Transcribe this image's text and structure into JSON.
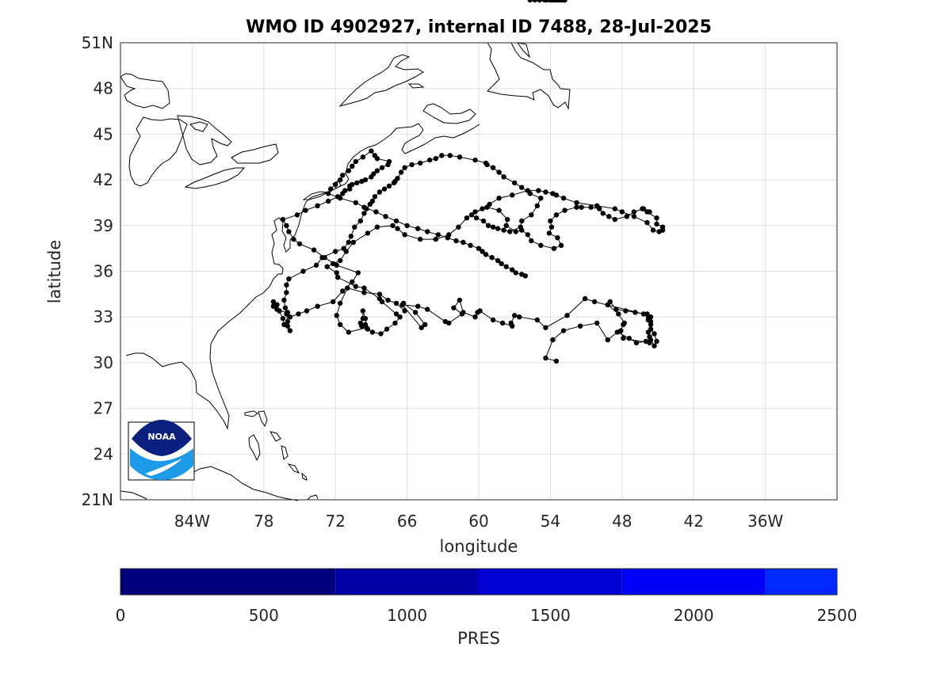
{
  "title": "WMO ID 4902927, internal ID 7488, 28-Jul-2025",
  "map": {
    "xlabel": "longitude",
    "ylabel": "latitude",
    "lon_range": [
      -90,
      -30
    ],
    "lat_range": [
      21,
      51
    ],
    "lon_ticks": [
      {
        "lon": -84,
        "label": "84W"
      },
      {
        "lon": -78,
        "label": "78"
      },
      {
        "lon": -72,
        "label": "72"
      },
      {
        "lon": -66,
        "label": "66"
      },
      {
        "lon": -60,
        "label": "60"
      },
      {
        "lon": -54,
        "label": "54"
      },
      {
        "lon": -48,
        "label": "48"
      },
      {
        "lon": -42,
        "label": "42"
      },
      {
        "lon": -36,
        "label": "36W"
      }
    ],
    "lat_ticks": [
      {
        "lat": 21,
        "label": "21N"
      },
      {
        "lat": 24,
        "label": "24"
      },
      {
        "lat": 27,
        "label": "27"
      },
      {
        "lat": 30,
        "label": "30"
      },
      {
        "lat": 33,
        "label": "33"
      },
      {
        "lat": 36,
        "label": "36"
      },
      {
        "lat": 39,
        "label": "39"
      },
      {
        "lat": 42,
        "label": "42"
      },
      {
        "lat": 45,
        "label": "45"
      },
      {
        "lat": 48,
        "label": "48"
      },
      {
        "lat": 51,
        "label": "51N"
      }
    ],
    "grid": true,
    "logo_text": "NOAA"
  },
  "colorbar": {
    "label": "PRES",
    "ticks": [
      0,
      500,
      1000,
      1500,
      2000,
      2500
    ],
    "range": [
      0,
      2500
    ],
    "bands": [
      {
        "from": 0,
        "to": 750,
        "color": "#00007f"
      },
      {
        "from": 750,
        "to": 1250,
        "color": "#0000a8"
      },
      {
        "from": 1250,
        "to": 1750,
        "color": "#0000d3"
      },
      {
        "from": 1750,
        "to": 2250,
        "color": "#0000f8"
      },
      {
        "from": 2250,
        "to": 2500,
        "color": "#0028ff"
      }
    ]
  },
  "chart_data": {
    "type": "scatter",
    "title": "WMO ID 4902927, internal ID 7488, 28-Jul-2025",
    "xlabel": "longitude",
    "ylabel": "latitude",
    "xlim": [
      -90,
      -30
    ],
    "ylim": [
      21,
      51
    ],
    "grid": true,
    "series": [
      {
        "lon": [
          -53.5,
          -54.4,
          -53.8,
          -52.9,
          -51.5,
          -50.1,
          -49.2,
          -48.4,
          -47.4,
          -46.8,
          -46.0,
          -45.6,
          -45.3,
          -45.1,
          -45.3,
          -45.6,
          -45.7,
          -45.6,
          -45.9,
          -45.8,
          -45.8,
          -45.6,
          -45.6,
          -45.8,
          -45.7,
          -45.7,
          -45.7,
          -47.9,
          -48.1,
          -47.9,
          -47.8,
          -48.3,
          -49.2,
          -49.0,
          -48.5,
          -47.7,
          -46.9,
          -46.2,
          -50.3,
          -51.1,
          -52.6,
          -54.4,
          -55.1,
          -56.6,
          -57.0,
          -57.3,
          -57.2,
          -58.0,
          -58.8,
          -59.9,
          -60.1,
          -60.3,
          -61.3,
          -61.6,
          -62.1,
          -61.4,
          -62.5,
          -62.8,
          -64.3,
          -65.1,
          -66.4,
          -64.8,
          -64.5,
          -65.3,
          -66.3,
          -66.2,
          -66.9,
          -67.6,
          -68.3,
          -69.6,
          -71.0,
          -71.6,
          -71.9,
          -71.6,
          -70.9,
          -69.4,
          -69.5,
          -69.7,
          -69.7,
          -69.9,
          -69.8,
          -69.5,
          -69.3,
          -68.9,
          -68.2,
          -67.7,
          -67.0,
          -66.6,
          -66.9,
          -68.1,
          -68.3,
          -69.6,
          -70.3,
          -71.8,
          -71.9,
          -72.7,
          -72.2,
          -71.6,
          -71.1,
          -70.5,
          -69.3,
          -68.5,
          -67.2,
          -66.8,
          -66.2,
          -64.9,
          -63.6,
          -62.5,
          -61.7,
          -61.0,
          -60.3,
          -59.3,
          -58.3,
          -57.6,
          -57.7,
          -56.9,
          -56.4,
          -55.9,
          -55.6,
          -54.8,
          -53.7,
          -53.1,
          -53.4,
          -54.1,
          -53.9,
          -54.0,
          -53.5,
          -52.8,
          -51.8,
          -51.4,
          -50.6,
          -49.9,
          -49.6,
          -49.1,
          -48.6,
          -47.6,
          -47.0,
          -46.2,
          -45.7,
          -46.3,
          -45.9,
          -45.1,
          -45.1,
          -44.6,
          -44.6,
          -44.9,
          -45.4,
          -45.9,
          -47.0,
          -48.0,
          -48.6,
          -50.1,
          -51.8,
          -52.9,
          -53.5,
          -53.8,
          -54.4,
          -55.0,
          -55.9,
          -57.2,
          -58.3,
          -59.1,
          -59.7,
          -60.6,
          -60.2,
          -59.6,
          -59.2,
          -58.8,
          -58.4,
          -57.9,
          -57.4,
          -56.5,
          -56.4,
          -55.6,
          -55.1,
          -54.8,
          -55.7,
          -56.4,
          -57.0,
          -57.9,
          -58.3,
          -58.8,
          -59.3,
          -59.4,
          -60.3,
          -61.6,
          -62.4,
          -63.1,
          -63.6,
          -64.1,
          -64.9,
          -65.6,
          -66.2,
          -66.5,
          -66.8,
          -67.0,
          -67.1,
          -67.5,
          -67.9,
          -68.3,
          -68.7,
          -68.9,
          -69.1,
          -69.4,
          -69.6,
          -69.9,
          -70.4,
          -70.7,
          -70.9,
          -71.3,
          -72.0,
          -73.1,
          -73.6,
          -74.7,
          -75.9,
          -76.1,
          -76.1,
          -76.3,
          -76.2,
          -76.1,
          -76.0,
          -76.0,
          -75.8,
          -76.3,
          -76.4,
          -76.7,
          -76.9,
          -77.2,
          -76.9,
          -77.2,
          -76.9,
          -76.7,
          -76.0,
          -75.8,
          -75.1,
          -74.4,
          -73.5,
          -72.2,
          -71.4,
          -70.6,
          -70.1,
          -71.9,
          -72.9,
          -73.8,
          -75.0,
          -75.5,
          -75.9,
          -76.1,
          -76.4,
          -75.2,
          -74.5,
          -73.5,
          -72.6,
          -71.8,
          -71.4,
          -71.2,
          -70.8,
          -70.8,
          -70.6,
          -70.2,
          -69.8,
          -69.5,
          -69.0,
          -68.8,
          -68.5,
          -68.1,
          -67.6,
          -67.5,
          -68.5,
          -68.7,
          -69.0,
          -69.7,
          -70.3,
          -70.6,
          -70.9,
          -71.4,
          -71.6,
          -72.0,
          -72.4,
          -72.6,
          -71.6,
          -70.3,
          -69.6,
          -68.6,
          -67.8,
          -66.9,
          -66.0,
          -65.1,
          -64.3,
          -63.4,
          -62.6,
          -61.9,
          -61.3,
          -60.7,
          -60.0,
          -59.7,
          -59.4,
          -58.9,
          -58.4,
          -58.1,
          -57.7,
          -57.2,
          -56.9,
          -56.4,
          -56.1,
          -55.7,
          -55.3,
          -54.9,
          -54.5,
          -54.3,
          -54.0,
          -53.8,
          -53.6,
          -53.4,
          -53.2,
          -53.0,
          -52.9,
          -52.8,
          -52.8
        ],
        "lat": [
          30.1,
          30.3,
          31.5,
          32.1,
          32.4,
          32.6,
          31.5,
          32.0,
          31.6,
          31.3,
          31.4,
          31.5,
          31.1,
          31.4,
          31.9,
          32.2,
          32.8,
          33.0,
          33.2,
          32.8,
          33.0,
          32.7,
          32.5,
          32.0,
          31.7,
          31.4,
          31.3,
          31.6,
          32.1,
          32.5,
          32.6,
          33.2,
          33.8,
          34.0,
          33.5,
          33.4,
          33.3,
          33.2,
          34.0,
          34.2,
          33.1,
          32.3,
          32.8,
          33.0,
          33.1,
          32.6,
          32.4,
          32.6,
          32.8,
          33.4,
          33.3,
          33.0,
          33.3,
          34.1,
          33.6,
          33.2,
          32.6,
          32.7,
          33.5,
          33.7,
          33.8,
          32.3,
          32.5,
          33.3,
          33.9,
          33.4,
          33.9,
          34.1,
          34.5,
          34.6,
          34.9,
          33.9,
          33.1,
          32.5,
          32.0,
          32.3,
          32.9,
          33.4,
          32.9,
          32.6,
          32.4,
          32.5,
          32.2,
          32.0,
          31.9,
          32.2,
          32.6,
          33.0,
          33.2,
          34.0,
          34.2,
          34.9,
          35.0,
          35.6,
          35.9,
          36.3,
          36.5,
          36.7,
          37.3,
          37.9,
          38.5,
          38.9,
          39.0,
          38.8,
          38.4,
          38.1,
          38.1,
          38.4,
          38.9,
          39.5,
          39.9,
          40.2,
          40.0,
          39.4,
          39.0,
          38.6,
          38.7,
          38.4,
          38.0,
          37.7,
          37.5,
          37.7,
          38.2,
          38.5,
          38.9,
          39.3,
          39.7,
          40.0,
          40.2,
          40.2,
          40.2,
          40.1,
          39.8,
          39.6,
          39.4,
          39.6,
          39.9,
          40.1,
          39.9,
          40.1,
          39.9,
          39.5,
          39.1,
          38.9,
          38.7,
          38.6,
          38.7,
          39.2,
          39.6,
          39.9,
          40.1,
          40.3,
          40.5,
          40.8,
          41.0,
          41.1,
          41.2,
          41.3,
          41.3,
          41.0,
          40.8,
          40.4,
          40.1,
          39.7,
          39.5,
          39.3,
          39.0,
          38.9,
          38.8,
          38.7,
          38.6,
          38.9,
          39.3,
          39.7,
          40.3,
          40.8,
          41.1,
          41.5,
          41.8,
          42.2,
          42.5,
          42.8,
          43.0,
          43.1,
          43.3,
          43.5,
          43.6,
          43.6,
          43.4,
          43.3,
          43.1,
          43.0,
          42.8,
          42.5,
          42.1,
          41.9,
          41.8,
          41.6,
          41.4,
          41.2,
          40.9,
          40.6,
          40.4,
          40.1,
          39.8,
          39.3,
          38.9,
          38.3,
          37.9,
          37.5,
          37.3,
          36.9,
          36.4,
          36.0,
          35.5,
          35.1,
          34.6,
          34.1,
          33.6,
          33.2,
          32.7,
          32.4,
          32.1,
          32.5,
          32.9,
          33.4,
          33.8,
          34.0,
          33.8,
          33.7,
          33.5,
          33.4,
          33.3,
          33.0,
          33.2,
          33.4,
          33.7,
          34.0,
          34.7,
          35.3,
          35.9,
          36.4,
          36.9,
          37.4,
          37.8,
          38.1,
          38.6,
          39.0,
          39.4,
          39.7,
          40.0,
          40.3,
          40.6,
          40.9,
          41.1,
          41.3,
          41.4,
          41.6,
          41.7,
          41.8,
          41.9,
          42.0,
          42.2,
          42.4,
          42.6,
          42.8,
          43.0,
          43.2,
          43.4,
          43.6,
          43.9,
          43.5,
          43.2,
          42.9,
          42.6,
          42.3,
          42.0,
          41.7,
          41.4,
          41.1,
          40.8,
          40.5,
          40.2,
          39.9,
          39.6,
          39.3,
          39.0,
          38.8,
          38.6,
          38.4,
          38.2,
          38.0,
          37.9,
          37.7,
          37.5,
          37.3,
          37.1,
          36.9,
          36.7,
          36.5,
          36.3,
          36.1,
          35.9,
          35.8,
          35.7
        ]
      }
    ]
  }
}
